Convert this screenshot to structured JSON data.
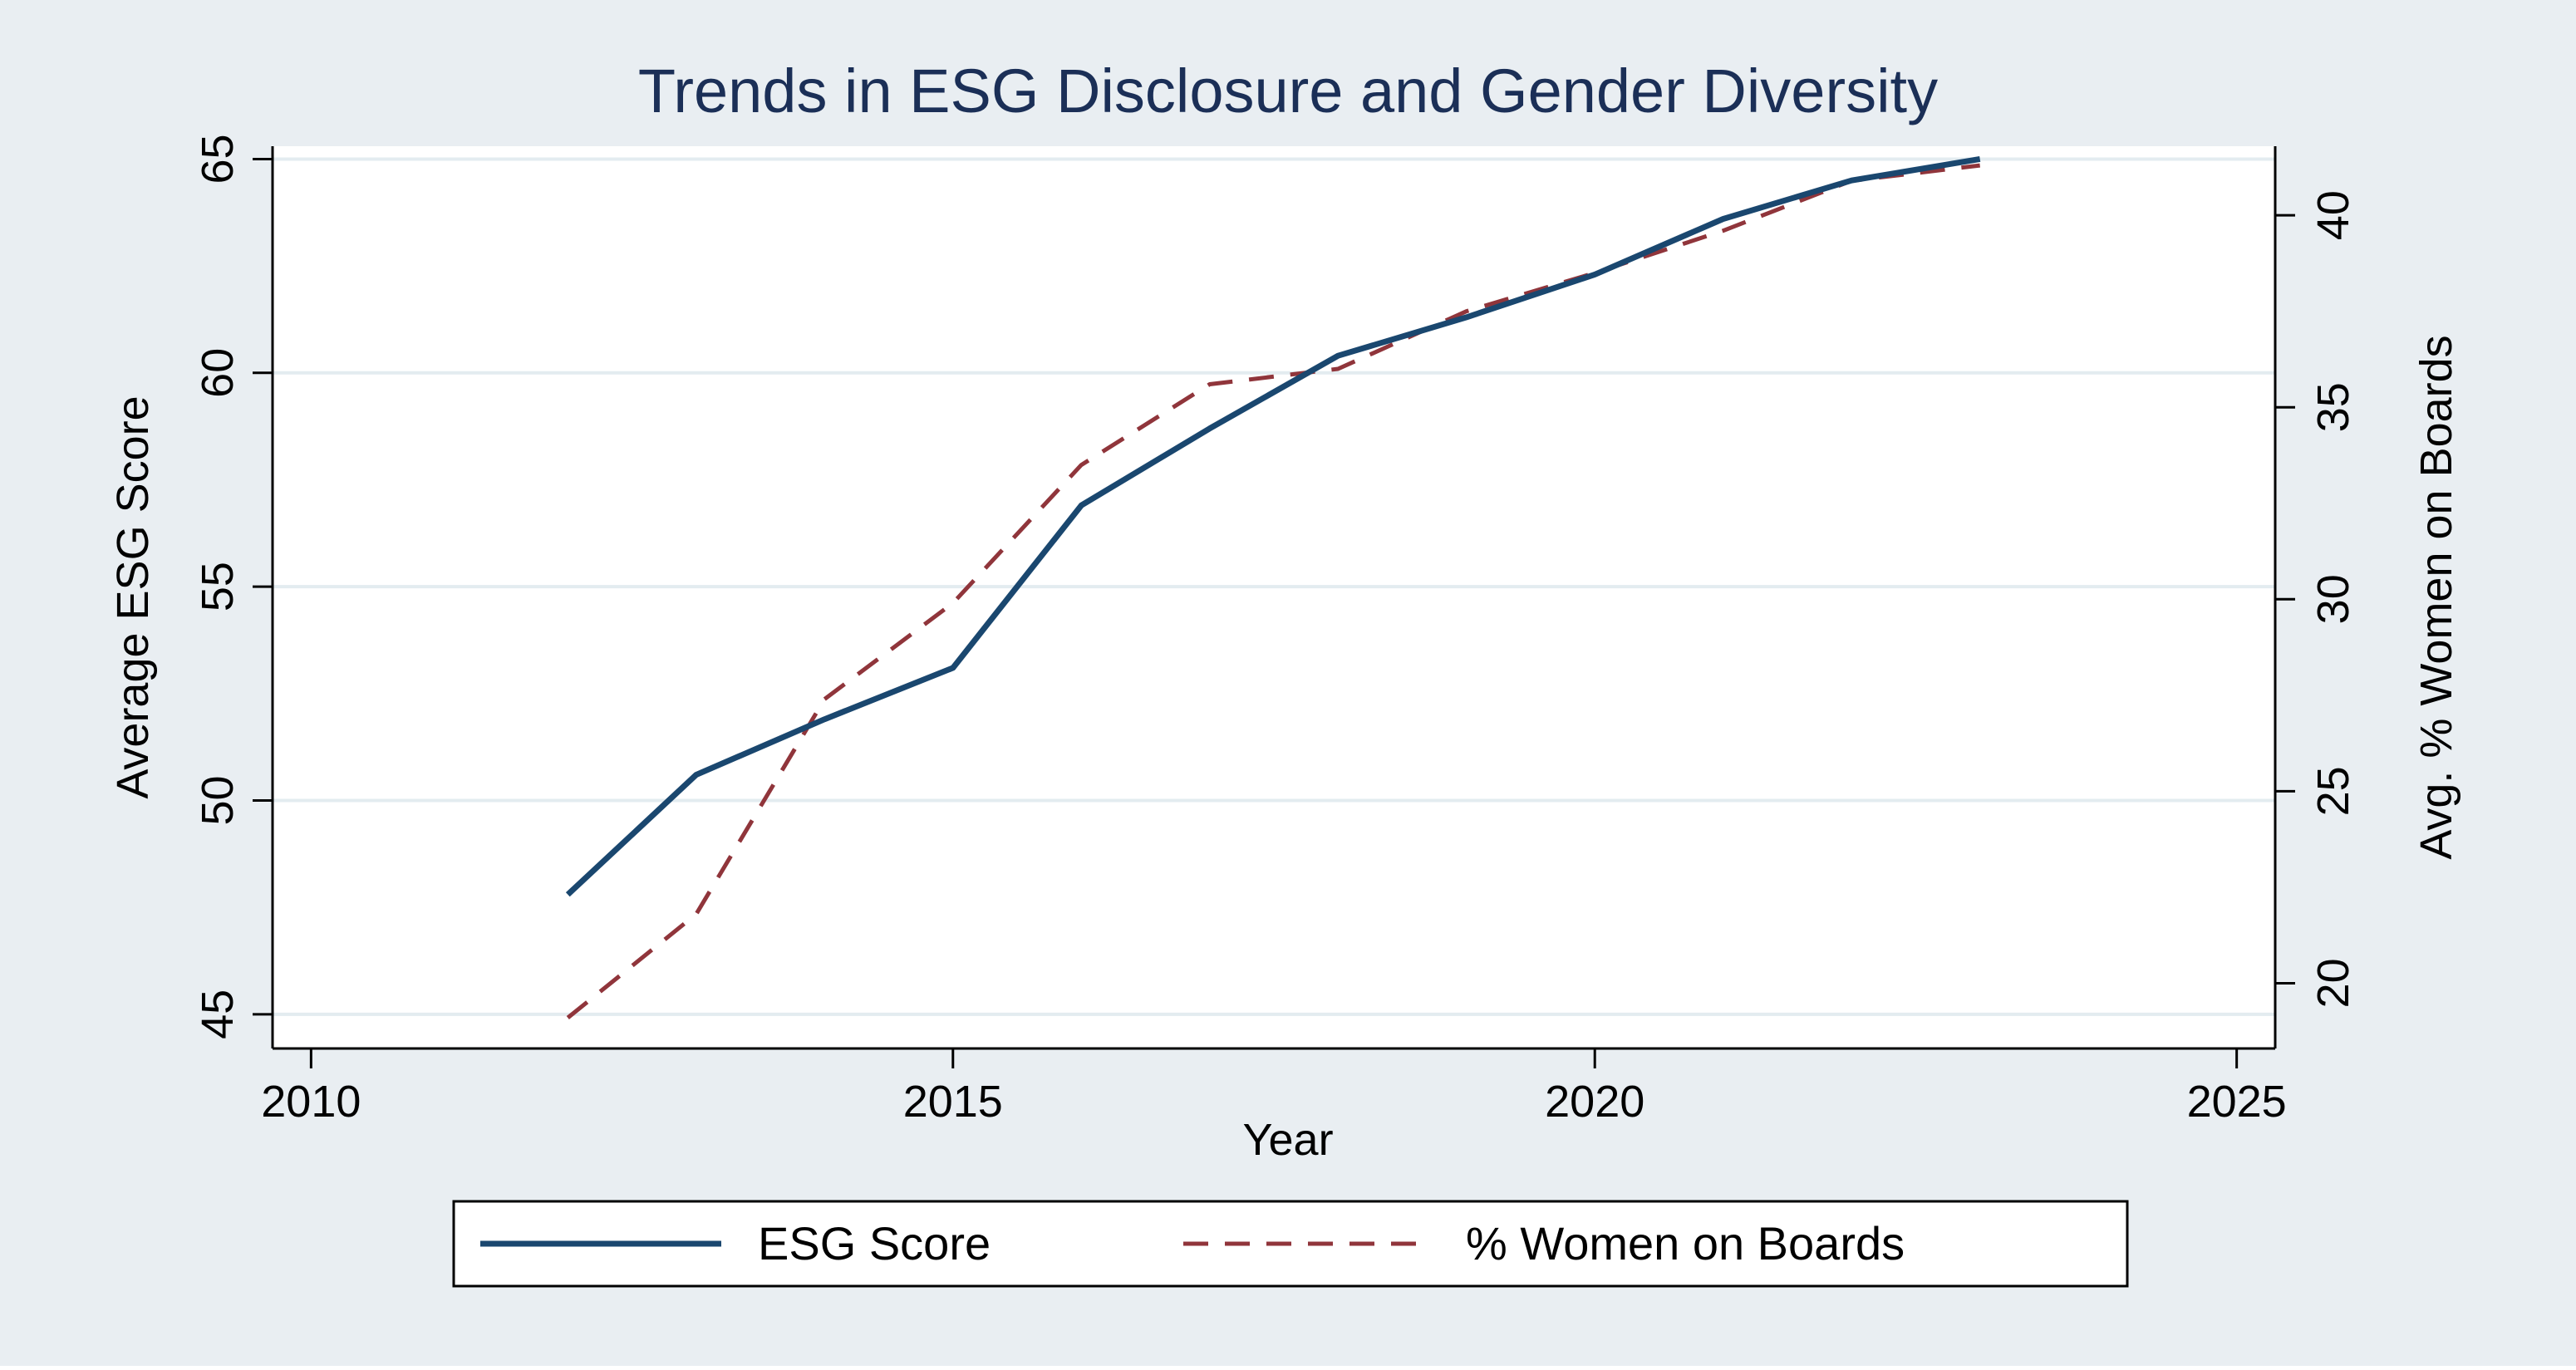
{
  "colors": {
    "outer_background": "#e9eef2",
    "plot_background": "#ffffff",
    "grid": "#e3ecf0",
    "title": "#1b2f57",
    "axis": "#000000",
    "esg": "#1a476f",
    "women": "#90353b"
  },
  "chart_data": {
    "type": "line",
    "title": "Trends in ESG Disclosure and Gender Diversity",
    "xlabel": "Year",
    "ylabel_left": "Average ESG Score",
    "ylabel_right": "Avg. % Women on Boards",
    "xlim": [
      2009.7,
      2025.3
    ],
    "x_ticks": [
      2010,
      2015,
      2020,
      2025
    ],
    "ylim_left": [
      44.2,
      65.3
    ],
    "y_ticks_left": [
      45,
      50,
      55,
      60,
      65
    ],
    "ylim_right": [
      18.3,
      41.8
    ],
    "y_ticks_right": [
      20,
      25,
      30,
      35,
      40
    ],
    "grid": true,
    "legend_position": "bottom",
    "series": [
      {
        "name": "ESG Score",
        "axis": "left",
        "style": "solid",
        "x": [
          2012,
          2013,
          2014,
          2015,
          2016,
          2017,
          2018,
          2019,
          2020,
          2021,
          2022,
          2023
        ],
        "values": [
          47.8,
          50.6,
          51.9,
          53.1,
          56.9,
          58.7,
          60.4,
          61.3,
          62.3,
          63.6,
          64.5,
          65.0
        ]
      },
      {
        "name": "% Women on Boards",
        "axis": "right",
        "style": "dashed",
        "x": [
          2012,
          2013,
          2014,
          2015,
          2016,
          2017,
          2018,
          2019,
          2020,
          2021,
          2022,
          2023
        ],
        "values": [
          19.1,
          21.8,
          27.4,
          29.9,
          33.5,
          35.6,
          36.0,
          37.5,
          38.5,
          39.6,
          40.9,
          41.3
        ]
      }
    ]
  }
}
